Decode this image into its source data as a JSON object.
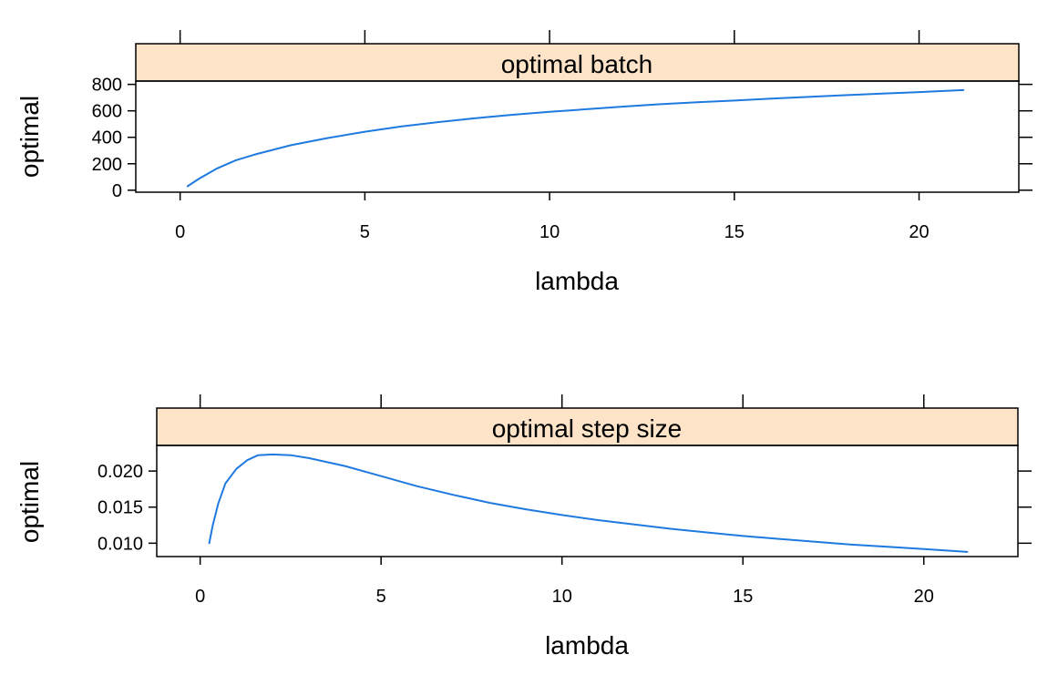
{
  "chart_data": [
    {
      "type": "line",
      "strip_title": "optimal batch",
      "xlabel": "lambda",
      "ylabel": "optimal",
      "xlim": [
        -1.2,
        22.7
      ],
      "ylim": [
        -15,
        825
      ],
      "x_ticks": [
        0,
        5,
        10,
        15,
        20
      ],
      "x_tick_labels": [
        "0",
        "5",
        "10",
        "15",
        "20"
      ],
      "y_ticks": [
        0,
        200,
        400,
        600,
        800
      ],
      "y_tick_labels": [
        "0",
        "200",
        "400",
        "600",
        "800"
      ],
      "grid": false,
      "colors": {
        "line": "#1f7ae0",
        "strip": "#fde3c8"
      },
      "series": [
        {
          "x": [
            0.2,
            0.5,
            1,
            1.5,
            2,
            3,
            4,
            5,
            6,
            7,
            8,
            9,
            10,
            11,
            12,
            13,
            14,
            15,
            16,
            17,
            18,
            19,
            20,
            21.2
          ],
          "values": [
            30,
            85,
            165,
            225,
            268,
            340,
            395,
            442,
            482,
            515,
            545,
            570,
            592,
            612,
            632,
            650,
            665,
            678,
            692,
            705,
            718,
            730,
            742,
            757
          ]
        }
      ]
    },
    {
      "type": "line",
      "strip_title": "optimal step size",
      "xlabel": "lambda",
      "ylabel": "optimal",
      "xlim": [
        -1.2,
        22.6
      ],
      "ylim": [
        0.00815,
        0.02355
      ],
      "x_ticks": [
        0,
        5,
        10,
        15,
        20
      ],
      "x_tick_labels": [
        "0",
        "5",
        "10",
        "15",
        "20"
      ],
      "y_ticks": [
        0.01,
        0.015,
        0.02
      ],
      "y_tick_labels": [
        "0.010",
        "0.015",
        "0.020"
      ],
      "grid": false,
      "colors": {
        "line": "#1f7ae0",
        "strip": "#fde3c8"
      },
      "series": [
        {
          "x": [
            0.25,
            0.35,
            0.5,
            0.7,
            1,
            1.3,
            1.6,
            2,
            2.5,
            3,
            4,
            5,
            6,
            7,
            8,
            9,
            10,
            11,
            12,
            13,
            14,
            15,
            16,
            17,
            18,
            19,
            20,
            21.2
          ],
          "values": [
            0.01,
            0.0125,
            0.0155,
            0.0183,
            0.0203,
            0.0215,
            0.0222,
            0.0223,
            0.0222,
            0.0218,
            0.0207,
            0.0193,
            0.0179,
            0.0167,
            0.0156,
            0.0147,
            0.0139,
            0.0132,
            0.0126,
            0.012,
            0.0115,
            0.011,
            0.0106,
            0.0102,
            0.0098,
            0.0095,
            0.0092,
            0.0088
          ]
        }
      ]
    }
  ]
}
